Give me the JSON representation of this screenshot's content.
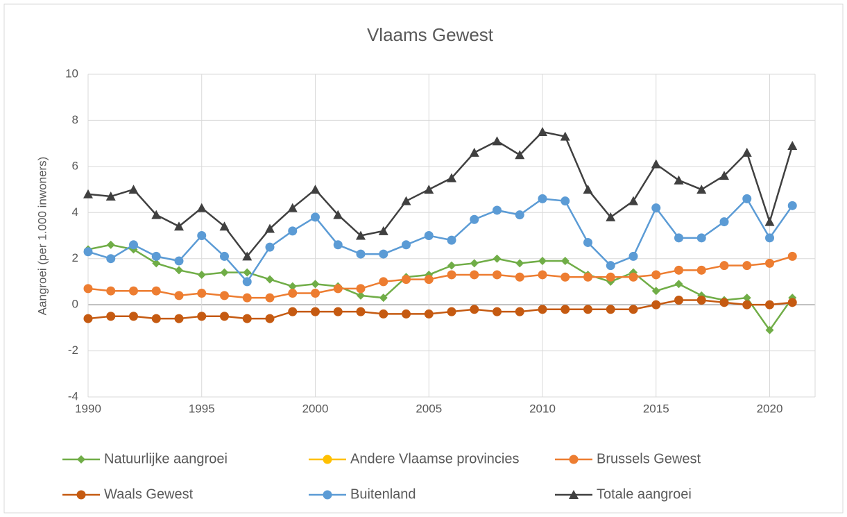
{
  "chart_data": {
    "type": "line",
    "title": "Vlaams Gewest",
    "y_label": "Aangroei (per 1.000 inwoners)",
    "x": [
      1990,
      1991,
      1992,
      1993,
      1994,
      1995,
      1996,
      1997,
      1998,
      1999,
      2000,
      2001,
      2002,
      2003,
      2004,
      2005,
      2006,
      2007,
      2008,
      2009,
      2010,
      2011,
      2012,
      2013,
      2014,
      2015,
      2016,
      2017,
      2018,
      2019,
      2020,
      2021
    ],
    "xlim": [
      1990,
      2022
    ],
    "xticks": [
      1990,
      1995,
      2000,
      2005,
      2010,
      2015,
      2020
    ],
    "ylim": [
      -4,
      10
    ],
    "yticks": [
      -4,
      -2,
      0,
      2,
      4,
      6,
      8,
      10
    ],
    "grid": true,
    "legend": "bottom",
    "series": [
      {
        "name": "Natuurlijke aangroei",
        "color": "#70ad47",
        "marker": "diamond",
        "values": [
          2.4,
          2.6,
          2.4,
          1.8,
          1.5,
          1.3,
          1.4,
          1.4,
          1.1,
          0.8,
          0.9,
          0.8,
          0.4,
          0.3,
          1.2,
          1.3,
          1.7,
          1.8,
          2.0,
          1.8,
          1.9,
          1.9,
          1.3,
          1.0,
          1.4,
          0.6,
          0.9,
          0.4,
          0.2,
          0.3,
          -1.1,
          0.3
        ]
      },
      {
        "name": "Andere Vlaamse provincies",
        "color": "#ffc000",
        "marker": "circle",
        "values": [
          null,
          null,
          null,
          null,
          null,
          null,
          null,
          null,
          null,
          null,
          null,
          null,
          null,
          null,
          null,
          null,
          null,
          null,
          null,
          null,
          null,
          null,
          null,
          null,
          null,
          null,
          null,
          null,
          null,
          null,
          null,
          null
        ]
      },
      {
        "name": "Brussels Gewest",
        "color": "#ed7d31",
        "marker": "circle",
        "values": [
          0.7,
          0.6,
          0.6,
          0.6,
          0.4,
          0.5,
          0.4,
          0.3,
          0.3,
          0.5,
          0.5,
          0.7,
          0.7,
          1.0,
          1.1,
          1.1,
          1.3,
          1.3,
          1.3,
          1.2,
          1.3,
          1.2,
          1.2,
          1.2,
          1.2,
          1.3,
          1.5,
          1.5,
          1.7,
          1.7,
          1.8,
          2.1
        ]
      },
      {
        "name": "Waals Gewest",
        "color": "#c55a11",
        "marker": "circle",
        "values": [
          -0.6,
          -0.5,
          -0.5,
          -0.6,
          -0.6,
          -0.5,
          -0.5,
          -0.6,
          -0.6,
          -0.3,
          -0.3,
          -0.3,
          -0.3,
          -0.4,
          -0.4,
          -0.4,
          -0.3,
          -0.2,
          -0.3,
          -0.3,
          -0.2,
          -0.2,
          -0.2,
          -0.2,
          -0.2,
          0.0,
          0.2,
          0.2,
          0.1,
          0.0,
          0.0,
          0.1
        ]
      },
      {
        "name": "Buitenland",
        "color": "#5b9bd5",
        "marker": "circle",
        "values": [
          2.3,
          2.0,
          2.6,
          2.1,
          1.9,
          3.0,
          2.1,
          1.0,
          2.5,
          3.2,
          3.8,
          2.6,
          2.2,
          2.2,
          2.6,
          3.0,
          2.8,
          3.7,
          4.1,
          3.9,
          4.6,
          4.5,
          2.7,
          1.7,
          2.1,
          4.2,
          2.9,
          2.9,
          3.6,
          4.6,
          2.9,
          4.3
        ]
      },
      {
        "name": "Totale aangroei",
        "color": "#404040",
        "marker": "triangle",
        "values": [
          4.8,
          4.7,
          5.0,
          3.9,
          3.4,
          4.2,
          3.4,
          2.1,
          3.3,
          4.2,
          5.0,
          3.9,
          3.0,
          3.2,
          4.5,
          5.0,
          5.5,
          6.6,
          7.1,
          6.5,
          7.5,
          7.3,
          5.0,
          3.8,
          4.5,
          6.1,
          5.4,
          5.0,
          5.6,
          6.6,
          3.6,
          6.9
        ]
      }
    ]
  }
}
